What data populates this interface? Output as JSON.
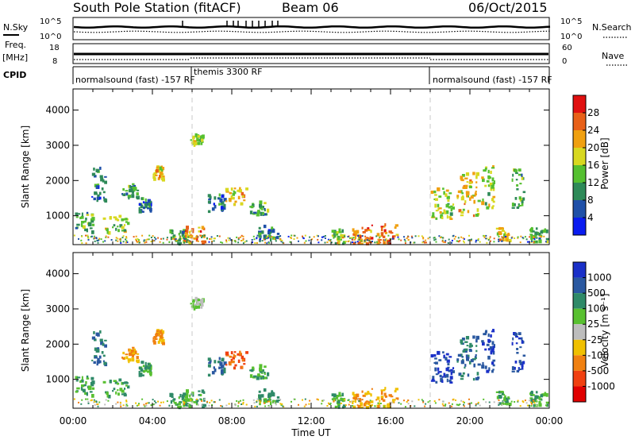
{
  "header": {
    "station": "South Pole Station (fitACF)",
    "beam": "Beam 06",
    "date": "06/Oct/2015"
  },
  "strip_labels": {
    "nsky": "N.Sky",
    "nsky_top": "10^5",
    "nsky_bottom": "10^0",
    "nsearch": "N.Search",
    "nsearch_top": "10^5",
    "nsearch_bottom": "10^0",
    "freq": "Freq.",
    "freq_unit": "[MHz]",
    "freq_top": "18",
    "freq_bottom": "8",
    "nave": "Nave",
    "nave_top": "60",
    "nave_bottom": "0",
    "cpid": "CPID"
  },
  "cpid_segments": [
    {
      "label": "normalsound (fast) -157 RF",
      "start_h": 0,
      "end_h": 6
    },
    {
      "label": "themis 3300 RF",
      "start_h": 6,
      "end_h": 18
    },
    {
      "label": "normalsound (fast) -157 RF",
      "start_h": 18,
      "end_h": 24
    }
  ],
  "x_axis": {
    "label": "Time UT",
    "ticks": [
      "00:00",
      "04:00",
      "08:00",
      "12:00",
      "16:00",
      "20:00",
      "00:00"
    ],
    "range_h": [
      0,
      24
    ]
  },
  "y_axis": {
    "label": "Slant Range [km]",
    "ticks": [
      "1000",
      "2000",
      "3000",
      "4000"
    ],
    "range_km": [
      180,
      4600
    ]
  },
  "power_scale": {
    "title": "Power [dB]",
    "labels": [
      "4",
      "8",
      "12",
      "16",
      "20",
      "24",
      "28"
    ],
    "colors": [
      "#0a1cf0",
      "#1f50a8",
      "#2e8a58",
      "#55c030",
      "#d8d820",
      "#f0a010",
      "#e86018",
      "#e01010"
    ]
  },
  "velocity_scale": {
    "title": "Velocity [m s⁻¹]",
    "labels": [
      "1000",
      "500",
      "100",
      "25",
      "-25",
      "-100",
      "-500",
      "-1000"
    ],
    "colors": [
      "#1a30c8",
      "#2a58a0",
      "#2f8a68",
      "#58c030",
      "#bdbdbd",
      "#f0c000",
      "#f08010",
      "#f04010",
      "#e00000"
    ]
  },
  "chart_data": {
    "type": "heatmap",
    "title": "South Pole Station (fitACF) Beam 06 06/Oct/2015",
    "xlabel": "Time UT",
    "ylabel": "Slant Range [km]",
    "xlim": [
      0,
      24
    ],
    "ylim": [
      180,
      4600
    ],
    "panels": [
      "Power [dB]",
      "Velocity [m s⁻¹]"
    ],
    "echo_regions": [
      {
        "t0": 0.1,
        "t1": 1.0,
        "r0": 500,
        "r1": 1100,
        "power": 12,
        "velocity": 100
      },
      {
        "t0": 0.9,
        "t1": 1.6,
        "r0": 1400,
        "r1": 2400,
        "power": 8,
        "velocity": 500
      },
      {
        "t0": 1.5,
        "t1": 2.8,
        "r0": 500,
        "r1": 1000,
        "power": 16,
        "velocity": 100
      },
      {
        "t0": 2.4,
        "t1": 3.2,
        "r0": 1500,
        "r1": 1900,
        "power": 12,
        "velocity": -100
      },
      {
        "t0": 3.3,
        "t1": 3.9,
        "r0": 1100,
        "r1": 1500,
        "power": 8,
        "velocity": 100
      },
      {
        "t0": 4.0,
        "t1": 4.5,
        "r0": 2000,
        "r1": 2400,
        "power": 20,
        "velocity": -100
      },
      {
        "t0": 4.8,
        "t1": 5.7,
        "r0": 200,
        "r1": 600,
        "power": 12,
        "velocity": 100
      },
      {
        "t0": 5.6,
        "t1": 6.6,
        "r0": 200,
        "r1": 700,
        "power": 24,
        "velocity": 100
      },
      {
        "t0": 5.9,
        "t1": 6.5,
        "r0": 3000,
        "r1": 3300,
        "power": 16,
        "velocity": 25
      },
      {
        "t0": 6.7,
        "t1": 7.6,
        "r0": 1100,
        "r1": 1600,
        "power": 8,
        "velocity": 500
      },
      {
        "t0": 7.5,
        "t1": 8.7,
        "r0": 1300,
        "r1": 1800,
        "power": 20,
        "velocity": -500
      },
      {
        "t0": 8.8,
        "t1": 9.8,
        "r0": 1000,
        "r1": 1400,
        "power": 12,
        "velocity": 100
      },
      {
        "t0": 9.3,
        "t1": 10.3,
        "r0": 300,
        "r1": 700,
        "power": 8,
        "velocity": 100
      },
      {
        "t0": 13.0,
        "t1": 13.6,
        "r0": 200,
        "r1": 600,
        "power": 16,
        "velocity": 100
      },
      {
        "t0": 14.0,
        "t1": 15.1,
        "r0": 200,
        "r1": 750,
        "power": 24,
        "velocity": -100
      },
      {
        "t0": 15.2,
        "t1": 16.3,
        "r0": 200,
        "r1": 750,
        "power": 24,
        "velocity": -100
      },
      {
        "t0": 18.0,
        "t1": 19.2,
        "r0": 900,
        "r1": 1800,
        "power": 16,
        "velocity": 1000
      },
      {
        "t0": 19.3,
        "t1": 20.4,
        "r0": 1000,
        "r1": 2200,
        "power": 20,
        "velocity": 500
      },
      {
        "t0": 20.5,
        "t1": 21.2,
        "r0": 1200,
        "r1": 2400,
        "power": 16,
        "velocity": 1000
      },
      {
        "t0": 21.3,
        "t1": 22.0,
        "r0": 250,
        "r1": 650,
        "power": 20,
        "velocity": 100
      },
      {
        "t0": 22.1,
        "t1": 22.7,
        "r0": 1200,
        "r1": 2300,
        "power": 12,
        "velocity": 1000
      },
      {
        "t0": 23.0,
        "t1": 23.9,
        "r0": 250,
        "r1": 650,
        "power": 12,
        "velocity": 100
      }
    ]
  }
}
